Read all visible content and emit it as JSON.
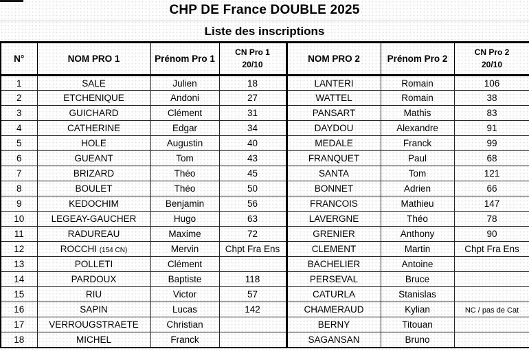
{
  "title": "CHP DE France DOUBLE 2025",
  "subtitle": "Liste des inscriptions",
  "header": {
    "num": "N°",
    "nom1": "NOM PRO 1",
    "prenom1": "Prénom Pro 1",
    "cn1_line1": "CN Pro 1",
    "cn1_line2": "20/10",
    "nom2": "NOM PRO 2",
    "prenom2": "Prénom Pro 2",
    "cn2_line1": "CN Pro 2",
    "cn2_line2": "20/10"
  },
  "rows": [
    {
      "num": "1",
      "nom1": "SALE",
      "prenom1": "Julien",
      "cn1": "18",
      "nom2": "LANTERI",
      "prenom2": "Romain",
      "cn2": "106"
    },
    {
      "num": "2",
      "nom1": "ETCHENIQUE",
      "prenom1": "Andoni",
      "cn1": "27",
      "nom2": "WATTEL",
      "prenom2": "Romain",
      "cn2": "38"
    },
    {
      "num": "3",
      "nom1": "GUICHARD",
      "prenom1": "Clément",
      "cn1": "31",
      "nom2": "PANSART",
      "prenom2": "Mathis",
      "cn2": "83"
    },
    {
      "num": "4",
      "nom1": "CATHERINE",
      "prenom1": "Edgar",
      "cn1": "34",
      "nom2": "DAYDOU",
      "prenom2": "Alexandre",
      "cn2": "91"
    },
    {
      "num": "5",
      "nom1": "HOLE",
      "prenom1": "Augustin",
      "cn1": "40",
      "nom2": "MEDALE",
      "prenom2": "Franck",
      "cn2": "99"
    },
    {
      "num": "6",
      "nom1": "GUEANT",
      "prenom1": "Tom",
      "cn1": "43",
      "nom2": "FRANQUET",
      "prenom2": "Paul",
      "cn2": "68"
    },
    {
      "num": "7",
      "nom1": "BRIZARD",
      "prenom1": "Théo",
      "cn1": "45",
      "nom2": "SANTA",
      "prenom2": "Tom",
      "cn2": "121"
    },
    {
      "num": "8",
      "nom1": "BOULET",
      "prenom1": "Théo",
      "cn1": "50",
      "nom2": "BONNET",
      "prenom2": "Adrien",
      "cn2": "66"
    },
    {
      "num": "9",
      "nom1": "KEDOCHIM",
      "prenom1": "Benjamin",
      "cn1": "56",
      "nom2": "FRANCOIS",
      "prenom2": "Mathieu",
      "cn2": "147"
    },
    {
      "num": "10",
      "nom1": "LEGEAY-GAUCHER",
      "prenom1": "Hugo",
      "cn1": "63",
      "nom2": "LAVERGNE",
      "prenom2": "Théo",
      "cn2": "78"
    },
    {
      "num": "11",
      "nom1": "RADUREAU",
      "prenom1": "Maxime",
      "cn1": "72",
      "nom2": "GRENIER",
      "prenom2": "Anthony",
      "cn2": "90"
    },
    {
      "num": "12",
      "nom1": "ROCCHI",
      "nom1_note": "(154 CN)",
      "prenom1": "Mervin",
      "cn1": "Chpt Fra Ens",
      "nom2": "CLEMENT",
      "prenom2": "Martin",
      "cn2": "Chpt Fra Ens"
    },
    {
      "num": "13",
      "nom1": "POLLETI",
      "prenom1": "Clément",
      "cn1": "",
      "nom2": "BACHELIER",
      "prenom2": "Antoine",
      "cn2": ""
    },
    {
      "num": "14",
      "nom1": "PARDOUX",
      "prenom1": "Baptiste",
      "cn1": "118",
      "nom2": "PERSEVAL",
      "prenom2": "Bruce",
      "cn2": ""
    },
    {
      "num": "15",
      "nom1": "RIU",
      "prenom1": "Victor",
      "cn1": "57",
      "nom2": "CATURLA",
      "prenom2": "Stanislas",
      "cn2": ""
    },
    {
      "num": "16",
      "nom1": "SAPIN",
      "prenom1": "Lucas",
      "cn1": "142",
      "nom2": "CHAMERAUD",
      "prenom2": "Kylian",
      "cn2": "NC / pas de Cat"
    },
    {
      "num": "17",
      "nom1": "VERROUGSTRAETE",
      "prenom1": "Christian",
      "cn1": "",
      "nom2": "BERNY",
      "prenom2": "Titouan",
      "cn2": ""
    },
    {
      "num": "18",
      "nom1": "MICHEL",
      "prenom1": "Franck",
      "cn1": "",
      "nom2": "SAGANSAN",
      "prenom2": "Bruno",
      "cn2": ""
    }
  ]
}
